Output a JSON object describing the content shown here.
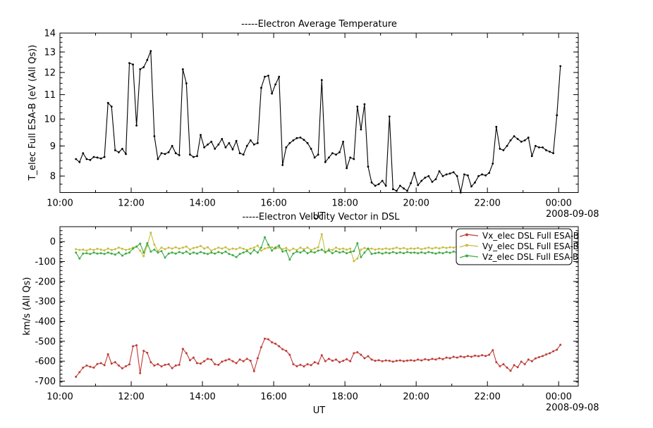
{
  "figure": {
    "background_color": "#ffffff",
    "frame_color": "#000000",
    "date_shown": "2008-09-08"
  },
  "chart_data": [
    {
      "type": "line",
      "title": "-----Electron Average Temperature",
      "xlabel": "UT",
      "ylabel": "T_elec Full ESA-B (eV (All Qs))",
      "x_axis_date": "2008-09-08",
      "y_scale": "log",
      "y_range": [
        7.5,
        14
      ],
      "y_ticks": [
        8,
        9,
        10,
        11,
        12,
        13,
        14
      ],
      "y_tick_labels": [
        "8",
        "9",
        "10",
        "11",
        "12",
        "13",
        "14"
      ],
      "y_minor_step": 0.25,
      "x_range_hours": [
        10.0,
        24.55
      ],
      "x_ticks_hours": [
        10,
        12,
        14,
        16,
        18,
        20,
        22,
        24
      ],
      "x_tick_labels": [
        "10:00",
        "12:00",
        "14:00",
        "16:00",
        "18:00",
        "20:00",
        "22:00",
        "00:00"
      ],
      "x_minor_step_hours": 1,
      "time_start_hours": 10.45,
      "time_step_hours": 0.1,
      "legend_shown": false,
      "series": [
        {
          "name": "T_elec Full ESA-B",
          "color": "#000000",
          "values": [
            8.55,
            8.45,
            8.75,
            8.55,
            8.52,
            8.62,
            8.6,
            8.57,
            8.62,
            10.65,
            10.5,
            8.85,
            8.78,
            8.9,
            8.72,
            12.45,
            12.38,
            9.75,
            12.15,
            12.25,
            12.6,
            13.05,
            9.35,
            8.55,
            8.75,
            8.72,
            8.78,
            9.0,
            8.75,
            8.68,
            12.15,
            11.5,
            8.7,
            8.62,
            8.65,
            9.4,
            8.95,
            9.05,
            9.15,
            8.9,
            9.05,
            9.25,
            8.95,
            9.1,
            8.88,
            9.18,
            8.75,
            8.7,
            9.0,
            9.2,
            9.05,
            9.1,
            11.3,
            11.8,
            11.85,
            11.05,
            11.45,
            11.8,
            8.35,
            8.95,
            9.1,
            9.2,
            9.28,
            9.3,
            9.22,
            9.1,
            8.9,
            8.6,
            8.7,
            11.65,
            8.45,
            8.6,
            8.75,
            8.7,
            8.78,
            9.15,
            8.25,
            8.6,
            8.55,
            10.5,
            9.6,
            10.6,
            8.3,
            7.8,
            7.7,
            7.75,
            7.85,
            7.7,
            10.1,
            7.6,
            7.55,
            7.7,
            7.62,
            7.55,
            7.78,
            8.1,
            7.72,
            7.85,
            7.95,
            8.0,
            7.82,
            7.9,
            8.15,
            8.0,
            8.05,
            8.08,
            8.12,
            8.0,
            7.5,
            8.05,
            8.02,
            7.68,
            7.8,
            8.0,
            8.05,
            8.02,
            8.1,
            8.4,
            9.7,
            8.9,
            8.85,
            9.0,
            9.2,
            9.35,
            9.25,
            9.15,
            9.2,
            9.3,
            8.65,
            9.0,
            8.95,
            8.95,
            8.85,
            8.8,
            8.75,
            10.15,
            12.3
          ]
        }
      ]
    },
    {
      "type": "line",
      "title": "-----Electron Velocity Vector in DSL",
      "xlabel": "UT",
      "ylabel": "km/s (All Qs)",
      "x_axis_date": "2008-09-08",
      "y_scale": "linear",
      "y_range": [
        -725,
        75
      ],
      "y_ticks": [
        0,
        -100,
        -200,
        -300,
        -400,
        -500,
        -600,
        -700
      ],
      "y_tick_labels": [
        "0",
        "-100",
        "-200",
        "-300",
        "-400",
        "-500",
        "-600",
        "-700"
      ],
      "y_minor_step": 20,
      "x_range_hours": [
        10.0,
        24.55
      ],
      "x_ticks_hours": [
        10,
        12,
        14,
        16,
        18,
        20,
        22,
        24
      ],
      "x_tick_labels": [
        "10:00",
        "12:00",
        "14:00",
        "16:00",
        "18:00",
        "20:00",
        "22:00",
        "00:00"
      ],
      "x_minor_step_hours": 1,
      "time_start_hours": 10.45,
      "time_step_hours": 0.1,
      "legend_shown": true,
      "series": [
        {
          "name": "Vx_elec DSL Full ESA-B",
          "color": "#bf3b36",
          "values": [
            -678,
            -655,
            -632,
            -622,
            -628,
            -632,
            -614,
            -610,
            -620,
            -565,
            -612,
            -605,
            -622,
            -636,
            -625,
            -616,
            -525,
            -520,
            -660,
            -548,
            -558,
            -605,
            -622,
            -615,
            -626,
            -618,
            -615,
            -635,
            -622,
            -618,
            -538,
            -560,
            -595,
            -582,
            -610,
            -612,
            -600,
            -588,
            -592,
            -615,
            -618,
            -602,
            -596,
            -590,
            -600,
            -610,
            -592,
            -600,
            -588,
            -598,
            -650,
            -585,
            -530,
            -487,
            -490,
            -505,
            -512,
            -525,
            -540,
            -548,
            -568,
            -615,
            -625,
            -618,
            -626,
            -615,
            -620,
            -605,
            -612,
            -570,
            -600,
            -588,
            -598,
            -592,
            -605,
            -598,
            -590,
            -600,
            -560,
            -555,
            -568,
            -585,
            -575,
            -592,
            -598,
            -595,
            -600,
            -596,
            -598,
            -602,
            -598,
            -596,
            -600,
            -597,
            -595,
            -598,
            -592,
            -596,
            -590,
            -594,
            -588,
            -592,
            -585,
            -590,
            -582,
            -585,
            -578,
            -582,
            -576,
            -580,
            -574,
            -578,
            -572,
            -575,
            -570,
            -574,
            -568,
            -545,
            -605,
            -625,
            -615,
            -632,
            -648,
            -620,
            -630,
            -602,
            -615,
            -592,
            -600,
            -586,
            -580,
            -574,
            -566,
            -560,
            -550,
            -542,
            -518
          ]
        },
        {
          "name": "Vy_elec DSL Full ESA-B",
          "color": "#c8bc3e",
          "values": [
            -38,
            -42,
            -40,
            -45,
            -38,
            -42,
            -36,
            -40,
            -44,
            -35,
            -42,
            -38,
            -30,
            -36,
            -42,
            -38,
            -30,
            -25,
            -45,
            -73,
            -20,
            45,
            -15,
            -48,
            -30,
            -38,
            -30,
            -35,
            -28,
            -35,
            -30,
            -25,
            -40,
            -32,
            -28,
            -22,
            -35,
            -28,
            -45,
            -38,
            -30,
            -35,
            -28,
            -40,
            -35,
            -38,
            -30,
            -36,
            -42,
            -35,
            -30,
            -20,
            -45,
            -35,
            -30,
            -28,
            -35,
            -30,
            -38,
            -32,
            -45,
            -35,
            -42,
            -30,
            -38,
            -30,
            -42,
            -35,
            -28,
            37,
            -55,
            -38,
            -42,
            -30,
            -38,
            -35,
            -40,
            -35,
            -98,
            -85,
            -40,
            -32,
            -38,
            -35,
            -40,
            -36,
            -38,
            -34,
            -38,
            -35,
            -30,
            -36,
            -32,
            -38,
            -34,
            -36,
            -32,
            -38,
            -34,
            -30,
            -35,
            -30,
            -34,
            -28,
            -32,
            -28,
            -30,
            -26,
            -30,
            22,
            -28,
            -24,
            -28,
            -25,
            -28,
            -24,
            -26,
            -22,
            -26,
            -30,
            -25,
            -28,
            -22,
            -25,
            -20,
            -24,
            -18,
            -22,
            -16,
            -20,
            -14,
            -16,
            -10,
            -8,
            -2,
            8,
            15
          ]
        },
        {
          "name": "Vz_elec DSL Full ESA-B",
          "color": "#3cac44",
          "values": [
            -55,
            -85,
            -60,
            -58,
            -62,
            -55,
            -60,
            -58,
            -62,
            -55,
            -60,
            -65,
            -55,
            -70,
            -60,
            -55,
            -35,
            -25,
            -10,
            -55,
            -8,
            -50,
            -40,
            -55,
            -48,
            -80,
            -60,
            -55,
            -60,
            -52,
            -58,
            -50,
            -62,
            -55,
            -60,
            -52,
            -58,
            -62,
            -55,
            -60,
            -52,
            -58,
            -50,
            -62,
            -68,
            -78,
            -62,
            -55,
            -48,
            -60,
            -42,
            -55,
            -30,
            22,
            -15,
            -45,
            -30,
            -20,
            -50,
            -45,
            -90,
            -60,
            -50,
            -55,
            -45,
            -58,
            -50,
            -55,
            -45,
            -40,
            -52,
            -45,
            -58,
            -48,
            -55,
            -50,
            -58,
            -52,
            -48,
            -8,
            -78,
            -55,
            -35,
            -62,
            -58,
            -55,
            -60,
            -55,
            -58,
            -52,
            -58,
            -54,
            -58,
            -52,
            -56,
            -55,
            -58,
            -54,
            -58,
            -52,
            -56,
            -60,
            -55,
            -58,
            -52,
            -56,
            -50,
            -55,
            -60,
            -52,
            -56,
            -50,
            -54,
            -58,
            -52,
            -55,
            -50,
            -54,
            -58,
            -50,
            -55,
            -48,
            -52,
            -56,
            -48,
            -52,
            -46,
            -50,
            -54,
            -48,
            -52,
            -46,
            -42,
            -48,
            -44,
            -40,
            -38
          ]
        }
      ]
    }
  ]
}
